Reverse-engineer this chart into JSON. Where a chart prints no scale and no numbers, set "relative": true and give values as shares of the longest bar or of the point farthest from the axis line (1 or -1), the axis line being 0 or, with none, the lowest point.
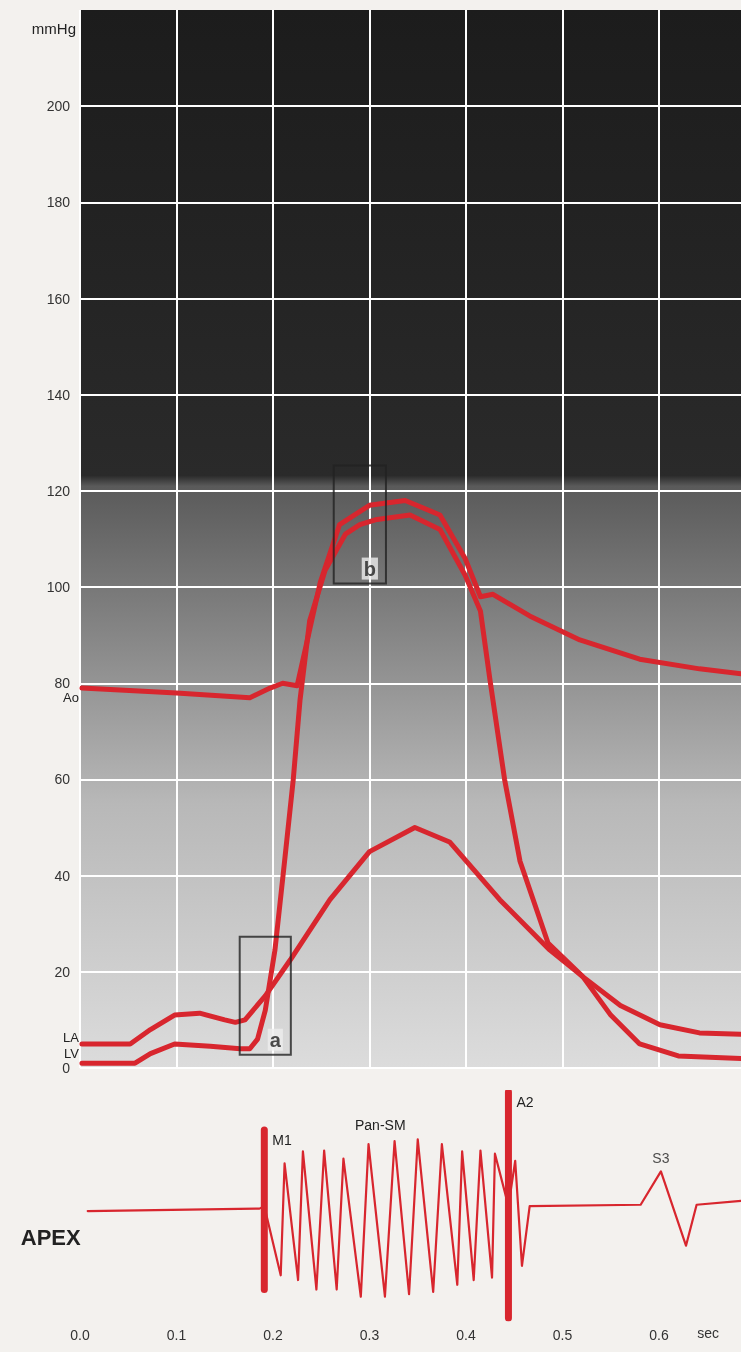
{
  "chart_data": [
    {
      "type": "line",
      "ylabel": "mmHg",
      "xlim": [
        0,
        0.685
      ],
      "xticks": [
        0,
        0.1,
        0.2,
        0.3,
        0.4,
        0.5,
        0.6
      ],
      "ylim": [
        0,
        220
      ],
      "yticks": [
        0,
        20,
        40,
        60,
        80,
        100,
        120,
        140,
        160,
        180,
        200
      ],
      "tick_labels": "y",
      "grid": true,
      "line_style": "solid",
      "series": [
        {
          "name": "Ao",
          "color": "#d8262e",
          "x": [
            0.002,
            0.1,
            0.176,
            0.197,
            0.21,
            0.225,
            0.249,
            0.269,
            0.3,
            0.337,
            0.373,
            0.399,
            0.415,
            0.428,
            0.466,
            0.518,
            0.58,
            0.642,
            0.685
          ],
          "values": [
            79,
            78,
            77,
            79,
            80,
            79.5,
            101,
            113,
            117,
            118,
            115,
            106,
            98,
            98.5,
            94,
            89,
            85,
            83,
            82
          ]
        },
        {
          "name": "LV",
          "color": "#d8262e",
          "x": [
            0.002,
            0.057,
            0.073,
            0.098,
            0.135,
            0.166,
            0.176,
            0.184,
            0.192,
            0.202,
            0.212,
            0.221,
            0.228,
            0.238,
            0.254,
            0.275,
            0.29,
            0.306,
            0.342,
            0.373,
            0.399,
            0.415,
            0.425,
            0.44,
            0.456,
            0.485,
            0.521,
            0.55,
            0.58,
            0.62,
            0.685
          ],
          "values": [
            1,
            1,
            3,
            5,
            4.5,
            4,
            4,
            6,
            12,
            24.5,
            43,
            60,
            76.5,
            93,
            103.5,
            111,
            113,
            114,
            115,
            112,
            102.5,
            95,
            80.5,
            60,
            43,
            26,
            19,
            11,
            5,
            2.5,
            2
          ]
        },
        {
          "name": "LA",
          "color": "#d8262e",
          "x": [
            0.002,
            0.052,
            0.073,
            0.098,
            0.124,
            0.15,
            0.161,
            0.171,
            0.192,
            0.218,
            0.259,
            0.3,
            0.347,
            0.383,
            0.435,
            0.487,
            0.521,
            0.56,
            0.601,
            0.642,
            0.685
          ],
          "values": [
            5,
            5,
            8,
            11,
            11.4,
            10,
            9.5,
            10,
            15,
            22.5,
            35,
            45,
            50,
            47,
            35,
            24.5,
            19,
            13,
            9,
            7.3,
            7
          ]
        }
      ],
      "annotations": [
        {
          "text": "a",
          "x": 0.192,
          "y": 15
        },
        {
          "text": "b",
          "x": 0.29,
          "y": 113
        }
      ]
    },
    {
      "type": "line",
      "relative": true,
      "xlabel": "sec",
      "xlim": [
        0,
        0.685
      ],
      "xticks": [
        {
          "value": 0,
          "label": "0.0"
        },
        0.1,
        0.2,
        0.3,
        0.4,
        0.5,
        0.6
      ],
      "tick_labels": "x",
      "line_style": "solid",
      "series": [
        {
          "name": "APEX",
          "color": "#d8262e",
          "x": [
            0.008,
            0.186,
            0.191,
            0.208,
            0.212,
            0.226,
            0.231,
            0.245,
            0.253,
            0.266,
            0.273,
            0.291,
            0.299,
            0.316,
            0.326,
            0.341,
            0.35,
            0.366,
            0.375,
            0.391,
            0.396,
            0.408,
            0.415,
            0.427,
            0.43,
            0.444,
            0.451,
            0.458,
            0.466,
            0.581,
            0.602,
            0.628,
            0.639,
            0.685
          ],
          "values": [
            0.473,
            0.484,
            0.495,
            0.189,
            0.684,
            0.168,
            0.737,
            0.126,
            0.741,
            0.126,
            0.705,
            0.094,
            0.769,
            0.094,
            0.783,
            0.105,
            0.79,
            0.115,
            0.769,
            0.147,
            0.737,
            0.168,
            0.741,
            0.179,
            0.727,
            0.495,
            0.695,
            0.231,
            0.495,
            0.501,
            0.649,
            0.32,
            0.501,
            0.518
          ]
        },
        {
          "name": "M1",
          "color": "#d8262e",
          "x": [
            0.191,
            0.191
          ],
          "values": [
            0.126,
            0.832
          ]
        },
        {
          "name": "A2",
          "color": "#d8262e",
          "x": [
            0.444,
            0.444
          ],
          "values": [
            0,
            1
          ]
        }
      ],
      "annotations": [
        "Pan-SM",
        {
          "text": "S3",
          "x": 0.602,
          "y": 0.649
        }
      ]
    }
  ]
}
